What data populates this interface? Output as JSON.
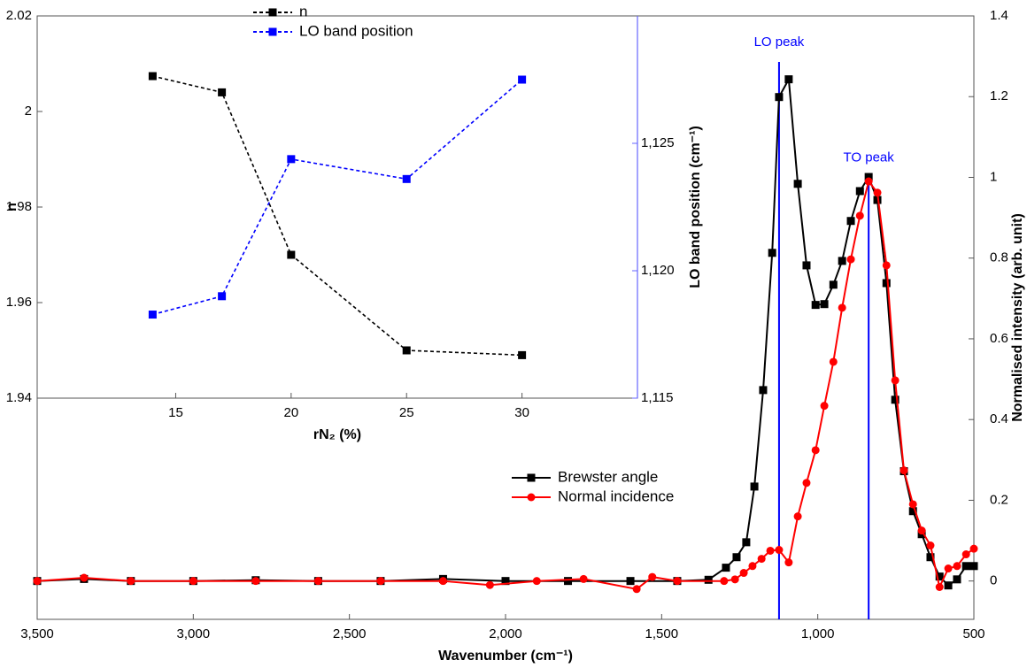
{
  "chart_data": [
    {
      "type": "line",
      "x_label": "Wavenumber (cm⁻¹)",
      "y_label": "Normalised intensity (arb. unit)",
      "y_axis_position": "right",
      "xlim": [
        3500,
        500
      ],
      "xticks": [
        {
          "value": 3500,
          "label": "3,500"
        },
        {
          "value": 3000,
          "label": "3,000"
        },
        {
          "value": 2500,
          "label": "2,500"
        },
        {
          "value": 2000,
          "label": "2,000"
        },
        {
          "value": 1500,
          "label": "1,500"
        },
        {
          "value": 1000,
          "label": "1,000"
        },
        {
          "value": 500,
          "label": "500"
        }
      ],
      "ylim": [
        -0.095,
        1.4
      ],
      "yticks": [
        0,
        0.2,
        0.4,
        0.6,
        0.8,
        1,
        1.2,
        1.4
      ],
      "legend": "center",
      "series": [
        {
          "name": "Brewster angle",
          "color": "#000000",
          "marker": "square",
          "x": [
            3500,
            3350,
            3200,
            3000,
            2800,
            2600,
            2400,
            2200,
            2000,
            1800,
            1600,
            1450,
            1350,
            1294,
            1260,
            1229,
            1203,
            1175,
            1146,
            1124,
            1093,
            1064,
            1036,
            1007,
            979,
            950,
            922,
            894,
            865,
            837,
            809,
            780,
            752,
            724,
            695,
            667,
            639,
            610,
            582,
            554,
            525,
            500
          ],
          "values": [
            0,
            0.005,
            0,
            0,
            0.002,
            0,
            0,
            0.005,
            0,
            0,
            0,
            0,
            0.003,
            0.033,
            0.059,
            0.096,
            0.234,
            0.473,
            0.813,
            1.199,
            1.243,
            0.984,
            0.782,
            0.684,
            0.686,
            0.734,
            0.793,
            0.892,
            0.966,
            1.001,
            0.944,
            0.738,
            0.449,
            0.272,
            0.173,
            0.116,
            0.059,
            0.011,
            -0.011,
            0.004,
            0.037,
            0.037
          ]
        },
        {
          "name": "Normal incidence",
          "color": "#ff0000",
          "marker": "circle",
          "x": [
            3500,
            3350,
            3200,
            3000,
            2800,
            2600,
            2400,
            2200,
            2050,
            1900,
            1750,
            1580,
            1530,
            1450,
            1300,
            1265,
            1237,
            1209,
            1180,
            1152,
            1124,
            1093,
            1064,
            1036,
            1007,
            979,
            950,
            922,
            894,
            865,
            837,
            809,
            780,
            752,
            724,
            695,
            667,
            639,
            610,
            582,
            554,
            525,
            500
          ],
          "values": [
            0,
            0.008,
            0,
            0,
            0,
            0,
            0,
            0,
            -0.01,
            0,
            0.005,
            -0.02,
            0.01,
            0,
            0,
            0.004,
            0.02,
            0.037,
            0.055,
            0.075,
            0.077,
            0.046,
            0.16,
            0.243,
            0.324,
            0.434,
            0.543,
            0.677,
            0.797,
            0.905,
            0.99,
            0.962,
            0.782,
            0.497,
            0.274,
            0.19,
            0.125,
            0.088,
            -0.015,
            0.031,
            0.037,
            0.066,
            0.08
          ]
        }
      ],
      "vlines": [
        {
          "x": 1124,
          "y": 1.286,
          "label": "LO peak",
          "color": "#0000ff"
        },
        {
          "x": 837,
          "y": 1.0,
          "label": "TO peak",
          "color": "#0000ff"
        }
      ]
    },
    {
      "type": "line",
      "x_label": "rN₂ (%)",
      "y_label": "n",
      "y2_label": "LO band position (cm⁻¹)",
      "xlim": [
        9,
        35
      ],
      "xticks": [
        15,
        20,
        25,
        30
      ],
      "ylim": [
        1.94,
        2.02
      ],
      "yticks": [
        1.94,
        1.96,
        1.98,
        2,
        2.02
      ],
      "y2lim": [
        1115,
        1130
      ],
      "y2ticks": [
        {
          "value": 1115,
          "label": "1,115"
        },
        {
          "value": 1120,
          "label": "1,120"
        },
        {
          "value": 1125,
          "label": "1,125"
        }
      ],
      "y2_axis_color": "#6666ff",
      "legend": "upper center",
      "x": [
        14,
        17,
        20,
        25,
        30
      ],
      "series": [
        {
          "name": "n",
          "color": "#000000",
          "marker": "square",
          "linestyle": "dashed",
          "values": [
            2.0074,
            2.004,
            1.97,
            1.95,
            1.949
          ]
        },
        {
          "name": "LO band position",
          "color": "#0000ff",
          "marker": "square",
          "linestyle": "dashed",
          "axis": "y2",
          "values": [
            1118.28,
            1119.0,
            1124.38,
            1123.6,
            1127.5
          ]
        }
      ]
    }
  ]
}
